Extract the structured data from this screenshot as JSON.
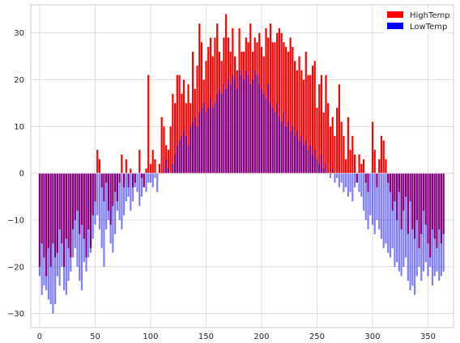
{
  "chart_data": {
    "type": "bar",
    "title": "",
    "xlabel": "",
    "ylabel": "",
    "xlim": [
      -8,
      373
    ],
    "ylim": [
      -33,
      36
    ],
    "xticks": [
      0,
      50,
      100,
      150,
      200,
      250,
      300,
      350
    ],
    "yticks": [
      -30,
      -20,
      -10,
      0,
      10,
      20,
      30
    ],
    "grid": true,
    "legend_position": "top-right",
    "overlay_alpha": 0.5,
    "x": [
      0,
      2,
      4,
      6,
      8,
      10,
      12,
      14,
      16,
      18,
      20,
      22,
      24,
      26,
      28,
      30,
      32,
      34,
      36,
      38,
      40,
      42,
      44,
      46,
      48,
      50,
      52,
      54,
      56,
      58,
      60,
      62,
      64,
      66,
      68,
      70,
      72,
      74,
      76,
      78,
      80,
      82,
      84,
      86,
      88,
      90,
      92,
      94,
      96,
      98,
      100,
      102,
      104,
      106,
      108,
      110,
      112,
      114,
      116,
      118,
      120,
      122,
      124,
      126,
      128,
      130,
      132,
      134,
      136,
      138,
      140,
      142,
      144,
      146,
      148,
      150,
      152,
      154,
      156,
      158,
      160,
      162,
      164,
      166,
      168,
      170,
      172,
      174,
      176,
      178,
      180,
      182,
      184,
      186,
      188,
      190,
      192,
      194,
      196,
      198,
      200,
      202,
      204,
      206,
      208,
      210,
      212,
      214,
      216,
      218,
      220,
      222,
      224,
      226,
      228,
      230,
      232,
      234,
      236,
      238,
      240,
      242,
      244,
      246,
      248,
      250,
      252,
      254,
      256,
      258,
      260,
      262,
      264,
      266,
      268,
      270,
      272,
      274,
      276,
      278,
      280,
      282,
      284,
      286,
      288,
      290,
      292,
      294,
      296,
      298,
      300,
      302,
      304,
      306,
      308,
      310,
      312,
      314,
      316,
      318,
      320,
      322,
      324,
      326,
      328,
      330,
      332,
      334,
      336,
      338,
      340,
      342,
      344,
      346,
      348,
      350,
      352,
      354,
      356,
      358,
      360,
      362,
      364
    ],
    "series": [
      {
        "name": "HighTemp",
        "color": "#ff0000",
        "values": [
          -20,
          -15,
          -18,
          -22,
          -16,
          -20,
          -15,
          -18,
          -17,
          -12,
          -15,
          -20,
          -14,
          -16,
          -18,
          -12,
          -10,
          -8,
          -13,
          -11,
          -14,
          -18,
          -12,
          -16,
          -9,
          -6,
          5,
          3,
          -3,
          -6,
          -2,
          -8,
          -11,
          -7,
          -4,
          -6,
          -2,
          4,
          -3,
          3,
          -3,
          1,
          -3,
          -2,
          0,
          5,
          -1,
          -3,
          1,
          21,
          2,
          5,
          3,
          0,
          2,
          12,
          10,
          6,
          5,
          10,
          17,
          15,
          21,
          21,
          17,
          20,
          15,
          19,
          15,
          26,
          18,
          23,
          32,
          28,
          20,
          24,
          27,
          29,
          25,
          29,
          32,
          26,
          24,
          29,
          34,
          29,
          26,
          31,
          25,
          22,
          31,
          26,
          26,
          29,
          28,
          32,
          26,
          29,
          28,
          30,
          27,
          25,
          31,
          29,
          32,
          28,
          28,
          30,
          31,
          30,
          28,
          27,
          26,
          29,
          27,
          24,
          22,
          25,
          22,
          20,
          26,
          21,
          21,
          23,
          24,
          14,
          19,
          21,
          13,
          21,
          15,
          10,
          12,
          8,
          14,
          19,
          11,
          8,
          3,
          12,
          5,
          8,
          4,
          -2,
          4,
          2,
          3,
          -2,
          -4,
          0,
          11,
          5,
          -3,
          3,
          8,
          7,
          3,
          -2,
          -4,
          -8,
          -6,
          -10,
          -4,
          -12,
          -8,
          -5,
          -13,
          -6,
          -12,
          -14,
          -10,
          -16,
          -13,
          -8,
          -11,
          -15,
          -18,
          -12,
          -14,
          -16,
          -12,
          -15,
          -13
        ]
      },
      {
        "name": "LowTemp",
        "color": "#0000ff",
        "values": [
          -22,
          -26,
          -24,
          -25,
          -27,
          -28,
          -30,
          -28,
          -22,
          -24,
          -20,
          -25,
          -26,
          -23,
          -21,
          -18,
          -16,
          -20,
          -23,
          -25,
          -19,
          -21,
          -18,
          -17,
          -14,
          -11,
          -9,
          -12,
          -16,
          -20,
          -12,
          -10,
          -15,
          -17,
          -13,
          -8,
          -10,
          -12,
          -9,
          -6,
          -5,
          -8,
          -6,
          -3,
          -4,
          -7,
          -5,
          -3,
          -4,
          -2,
          -2,
          -3,
          -1,
          -4,
          0,
          0,
          1,
          3,
          1,
          0,
          2,
          4,
          6,
          7,
          8,
          9,
          8,
          6,
          10,
          11,
          12,
          10,
          13,
          14,
          15,
          13,
          14,
          16,
          14,
          15,
          17,
          18,
          17,
          19,
          18,
          20,
          19,
          21,
          20,
          18,
          22,
          21,
          20,
          22,
          21,
          19,
          20,
          22,
          21,
          19,
          18,
          17,
          16,
          19,
          15,
          14,
          13,
          15,
          12,
          11,
          13,
          10,
          11,
          9,
          10,
          8,
          9,
          7,
          8,
          6,
          7,
          5,
          6,
          4,
          5,
          3,
          2,
          4,
          1,
          2,
          0,
          -1,
          1,
          -2,
          -1,
          -3,
          -2,
          -4,
          -3,
          -5,
          -4,
          -6,
          -3,
          -2,
          -4,
          -5,
          -8,
          -10,
          -12,
          -9,
          -11,
          -13,
          -10,
          -12,
          -14,
          -16,
          -15,
          -17,
          -18,
          -16,
          -20,
          -19,
          -21,
          -22,
          -20,
          -18,
          -23,
          -25,
          -24,
          -26,
          -22,
          -20,
          -23,
          -21,
          -19,
          -22,
          -20,
          -24,
          -22,
          -21,
          -23,
          -22,
          -21
        ]
      }
    ]
  }
}
